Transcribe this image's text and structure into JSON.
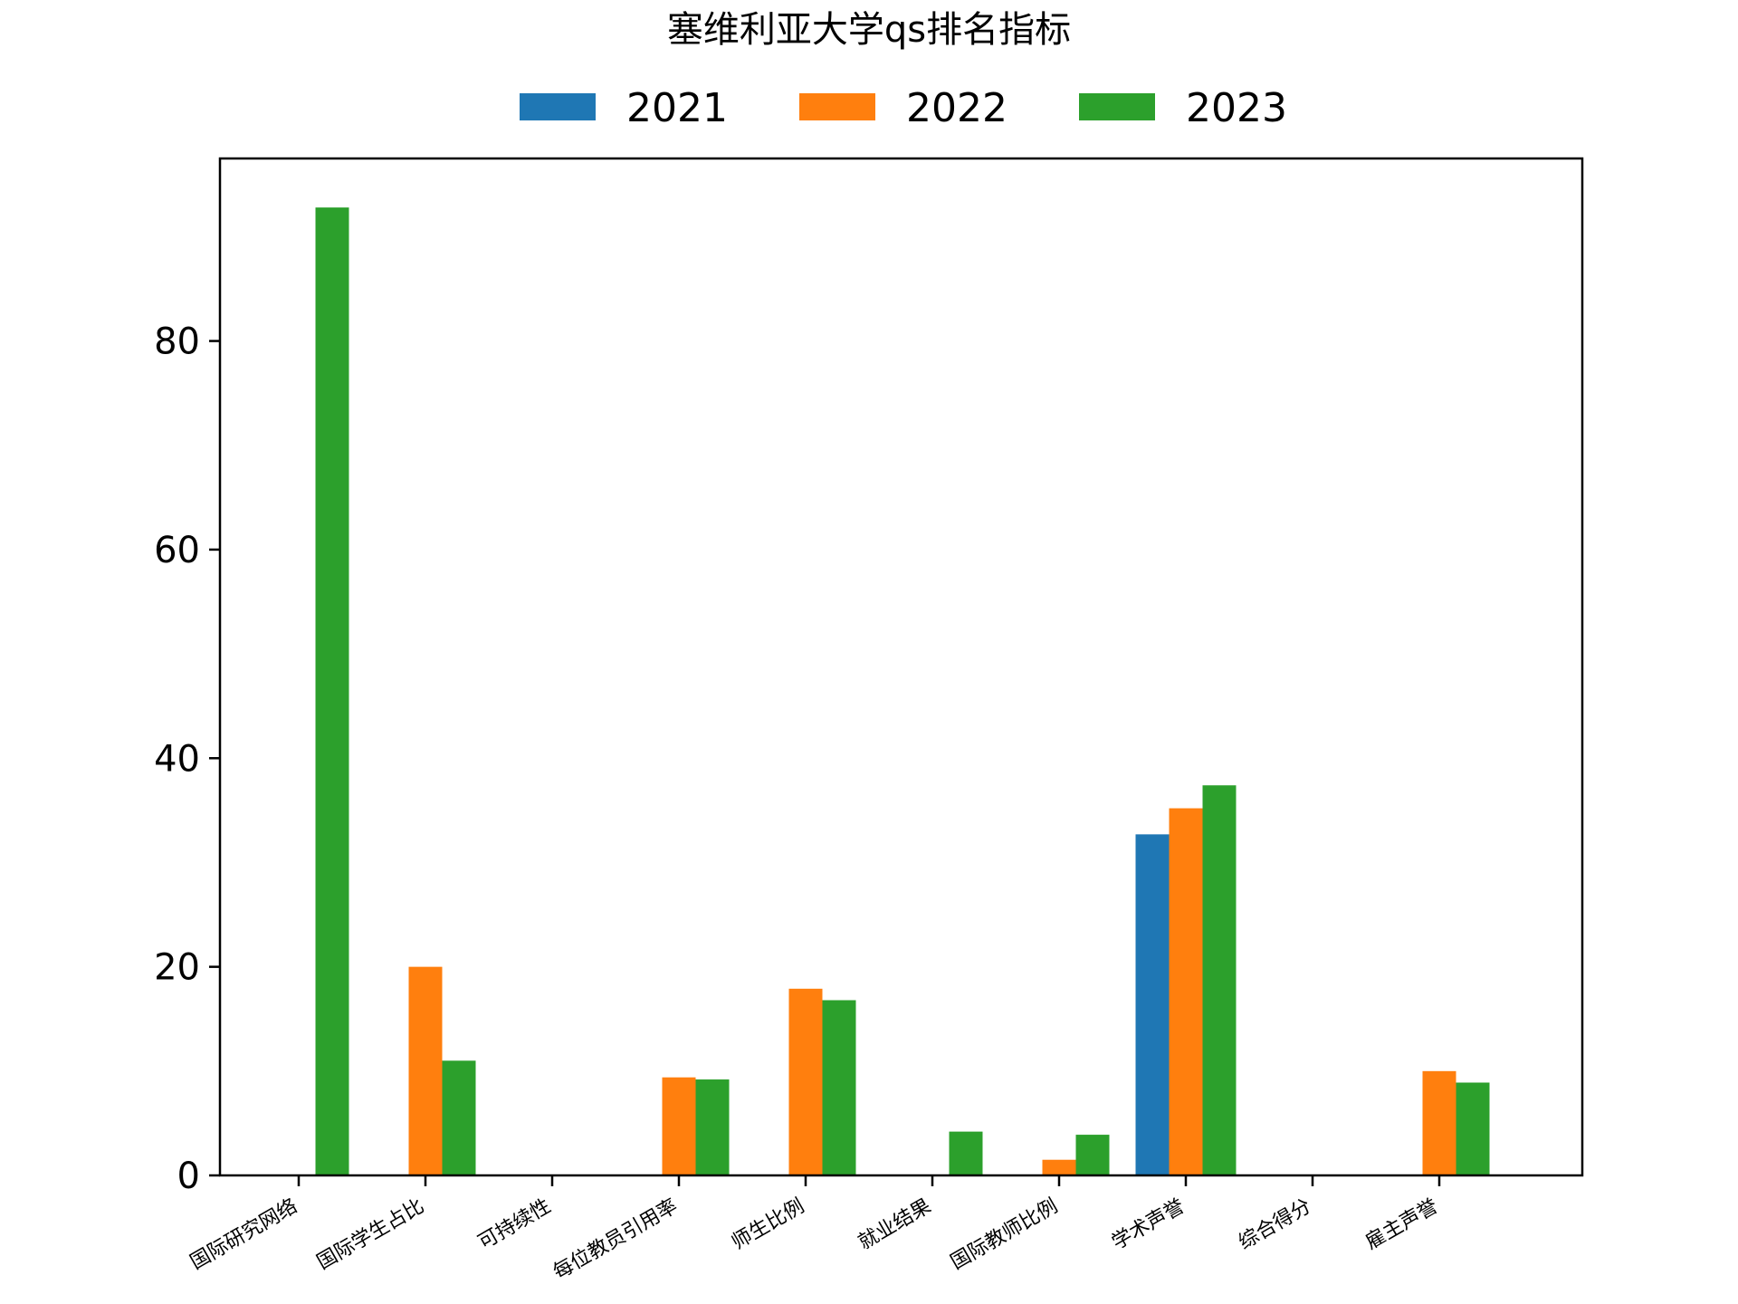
{
  "chart_data": {
    "type": "bar",
    "title": "塞维利亚大学qs排名指标",
    "categories": [
      "国际研究网络",
      "国际学生占比",
      "可持续性",
      "每位教员引用率",
      "师生比例",
      "就业结果",
      "国际教师比例",
      "学术声誉",
      "综合得分",
      "雇主声誉"
    ],
    "series": [
      {
        "name": "2021",
        "color": "#1f77b4",
        "values": [
          0,
          0,
          0,
          0,
          0,
          0,
          0,
          32.7,
          0,
          0
        ]
      },
      {
        "name": "2022",
        "color": "#ff7f0e",
        "values": [
          0,
          20.0,
          0,
          9.4,
          17.9,
          0,
          1.5,
          35.2,
          0,
          10.0
        ]
      },
      {
        "name": "2023",
        "color": "#2ca02c",
        "values": [
          92.8,
          11.0,
          0,
          9.2,
          16.8,
          4.2,
          3.9,
          37.4,
          0,
          8.9
        ]
      }
    ],
    "xlabel": "",
    "ylabel": "",
    "ylim": [
      0,
      97.5
    ],
    "yticks": [
      0,
      20,
      40,
      60,
      80
    ],
    "legend_position": "top-center",
    "grid": false
  }
}
